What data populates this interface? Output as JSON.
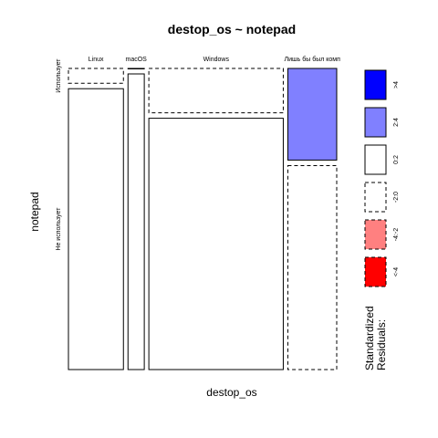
{
  "chart_data": {
    "type": "mosaic",
    "title": "destop_os ~ notepad",
    "xlabel": "destop_os",
    "ylabel": "notepad",
    "x_categories": [
      "Linux",
      "macOS",
      "Windows",
      "Лишь бы был комп"
    ],
    "y_categories": [
      "Использует",
      "Не использует"
    ],
    "x_proportions": [
      0.216,
      0.064,
      0.528,
      0.192
    ],
    "cells": [
      {
        "x": "Linux",
        "y": "Использует",
        "share": 0.05,
        "residual_bin": "-2:0"
      },
      {
        "x": "Linux",
        "y": "Не использует",
        "share": 0.95,
        "residual_bin": "0:2"
      },
      {
        "x": "macOS",
        "y": "Использует",
        "share": 0.0,
        "residual_bin": "0:2"
      },
      {
        "x": "macOS",
        "y": "Не использует",
        "share": 1.0,
        "residual_bin": "0:2"
      },
      {
        "x": "Windows",
        "y": "Использует",
        "share": 0.15,
        "residual_bin": "-2:0"
      },
      {
        "x": "Windows",
        "y": "Не использует",
        "share": 0.85,
        "residual_bin": "0:2"
      },
      {
        "x": "Лишь бы был комп",
        "y": "Использует",
        "share": 0.31,
        "residual_bin": "2:4"
      },
      {
        "x": "Лишь бы был комп",
        "y": "Не использует",
        "share": 0.69,
        "residual_bin": "-2:0"
      }
    ],
    "legend": {
      "title_lines": [
        "Standardized",
        "Residuals:"
      ],
      "bins": [
        {
          "label": ">4",
          "fill": "#0000ff",
          "dashed": false
        },
        {
          "label": "2:4",
          "fill": "#8080ff",
          "dashed": false
        },
        {
          "label": "0:2",
          "fill": "#ffffff",
          "dashed": false
        },
        {
          "label": "-2:0",
          "fill": "#ffffff",
          "dashed": true
        },
        {
          "label": "-4:-2",
          "fill": "#ff8080",
          "dashed": true
        },
        {
          "label": "<-4",
          "fill": "#ff0000",
          "dashed": true
        }
      ]
    }
  }
}
